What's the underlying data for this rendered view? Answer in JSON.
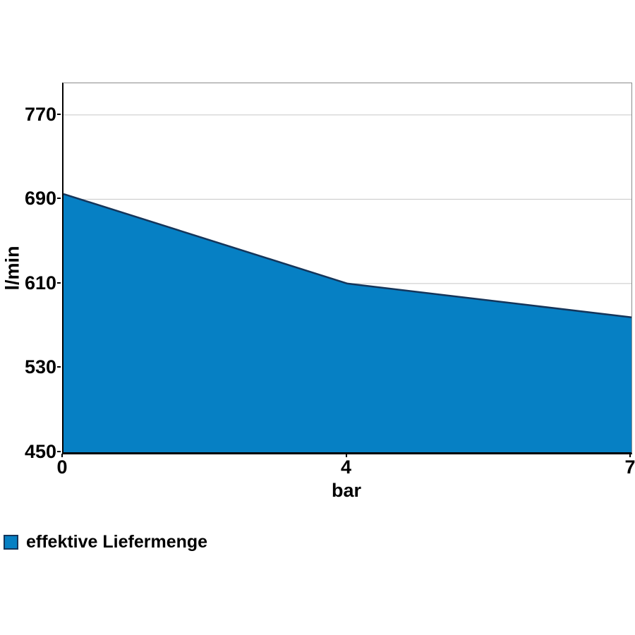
{
  "chart_data": {
    "type": "area",
    "title": "",
    "xlabel": "bar",
    "ylabel": "l/min",
    "x_axis_type": "category",
    "x": [
      0,
      4,
      7
    ],
    "series": [
      {
        "name": "effektive Liefermenge",
        "values": [
          695,
          610,
          578
        ]
      }
    ],
    "ylim": [
      450,
      800
    ],
    "yticks": [
      450,
      530,
      610,
      690,
      770
    ],
    "xticks": [
      0,
      4,
      7
    ],
    "grid": "horizontal-only",
    "legend_position": "bottom-left",
    "colors": {
      "fill": "#0680c4",
      "line": "#15355a",
      "grid": "#c6c6c6",
      "axis": "#000000",
      "frame": "#8a8a8a",
      "text": "#000000"
    }
  },
  "legend": {
    "label": "effektive Liefermenge"
  }
}
